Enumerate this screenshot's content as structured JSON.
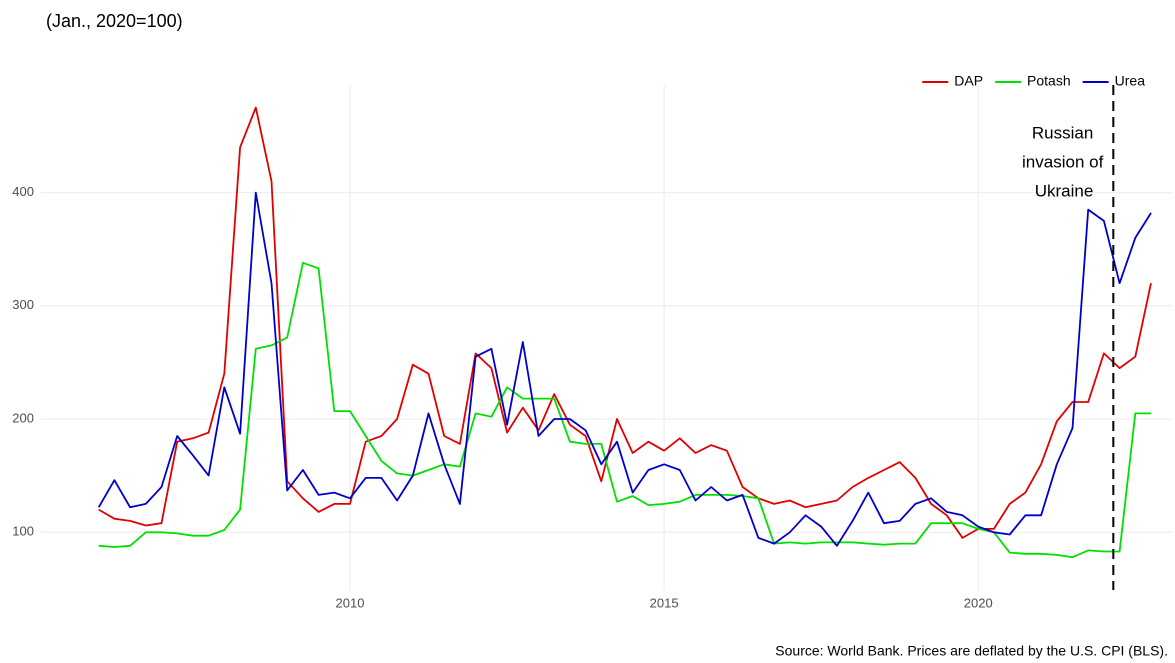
{
  "chart_data": {
    "type": "line",
    "title": "(Jan., 2020=100)",
    "source": "Source: World Bank. Prices are deflated by the U.S. CPI (BLS).",
    "x": [
      2006.0,
      2006.25,
      2006.5,
      2006.75,
      2007.0,
      2007.25,
      2007.5,
      2007.75,
      2008.0,
      2008.25,
      2008.5,
      2008.75,
      2009.0,
      2009.25,
      2009.5,
      2009.75,
      2010.0,
      2010.25,
      2010.5,
      2010.75,
      2011.0,
      2011.25,
      2011.5,
      2011.75,
      2012.0,
      2012.25,
      2012.5,
      2012.75,
      2013.0,
      2013.25,
      2013.5,
      2013.75,
      2014.0,
      2014.25,
      2014.5,
      2014.75,
      2015.0,
      2015.25,
      2015.5,
      2015.75,
      2016.0,
      2016.25,
      2016.5,
      2016.75,
      2017.0,
      2017.25,
      2017.5,
      2017.75,
      2018.0,
      2018.25,
      2018.5,
      2018.75,
      2019.0,
      2019.25,
      2019.5,
      2019.75,
      2020.0,
      2020.25,
      2020.5,
      2020.75,
      2021.0,
      2021.25,
      2021.5,
      2021.75,
      2022.0,
      2022.25,
      2022.5,
      2022.75
    ],
    "series": [
      {
        "name": "DAP",
        "color": "#e00000",
        "values": [
          120,
          112,
          110,
          106,
          108,
          180,
          183,
          188,
          240,
          440,
          475,
          410,
          145,
          130,
          118,
          125,
          125,
          180,
          185,
          200,
          248,
          240,
          185,
          178,
          258,
          245,
          188,
          210,
          190,
          222,
          195,
          185,
          145,
          200,
          170,
          180,
          172,
          183,
          170,
          177,
          172,
          140,
          130,
          125,
          128,
          122,
          125,
          128,
          140,
          148,
          155,
          162,
          148,
          125,
          115,
          95,
          103,
          103,
          125,
          135,
          160,
          198,
          215,
          215,
          258,
          245,
          255,
          320
        ]
      },
      {
        "name": "Potash",
        "color": "#00e000",
        "values": [
          88,
          87,
          88,
          100,
          100,
          99,
          97,
          97,
          102,
          120,
          262,
          265,
          272,
          338,
          333,
          207,
          207,
          185,
          163,
          152,
          150,
          155,
          160,
          158,
          205,
          202,
          228,
          218,
          218,
          218,
          180,
          178,
          178,
          127,
          132,
          124,
          125,
          127,
          133,
          133,
          133,
          132,
          130,
          90,
          91,
          90,
          91,
          91,
          91,
          90,
          89,
          90,
          90,
          108,
          108,
          108,
          103,
          100,
          82,
          81,
          81,
          80,
          78,
          84,
          83,
          83,
          205,
          205
        ]
      },
      {
        "name": "Urea",
        "color": "#0000cc",
        "values": [
          122,
          146,
          122,
          125,
          140,
          185,
          168,
          150,
          228,
          187,
          400,
          320,
          137,
          155,
          133,
          135,
          130,
          148,
          148,
          128,
          150,
          205,
          160,
          125,
          255,
          262,
          195,
          268,
          185,
          200,
          200,
          190,
          160,
          180,
          135,
          155,
          160,
          155,
          128,
          140,
          128,
          133,
          95,
          90,
          100,
          115,
          105,
          88,
          110,
          135,
          108,
          110,
          125,
          130,
          118,
          115,
          105,
          100,
          98,
          115,
          115,
          160,
          192,
          385,
          375,
          320,
          360,
          382
        ]
      }
    ],
    "xlim": [
      2005.4,
      2023.1
    ],
    "ylim": [
      49,
      495
    ],
    "xticks": [
      2010,
      2015,
      2020
    ],
    "yticks": [
      100,
      200,
      300,
      400
    ],
    "grid": true,
    "legend": "top-right",
    "annotation": {
      "x": 2022.15,
      "lines": [
        "Russian",
        "invasion of",
        "Ukraine"
      ]
    }
  }
}
